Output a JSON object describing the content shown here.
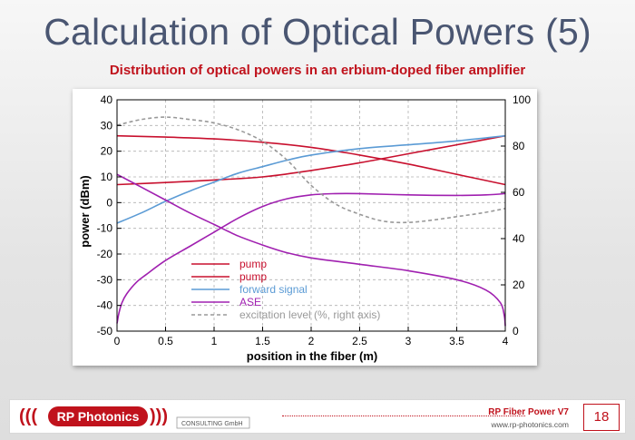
{
  "slide": {
    "title": "Calculation of Optical Powers (5)"
  },
  "footer": {
    "logo_text": "RP Photonics",
    "logo_subtext": "CONSULTING GmbH",
    "product": "RP Fiber Power V7",
    "url": "www.rp-photonics.com",
    "page_number": "18"
  },
  "chart_data": {
    "type": "line",
    "title": "Distribution of optical powers in an erbium-doped fiber amplifier",
    "xlabel": "position in the fiber (m)",
    "ylabel": "power (dBm)",
    "y2label": "",
    "xlim": [
      0,
      4
    ],
    "ylim": [
      -50,
      40
    ],
    "y2lim": [
      0,
      100
    ],
    "xticks": [
      "0",
      "0.5",
      "1",
      "1.5",
      "2",
      "2.5",
      "3",
      "3.5",
      "4"
    ],
    "yticks": [
      "-50",
      "-40",
      "-30",
      "-20",
      "-10",
      "0",
      "10",
      "20",
      "30",
      "40"
    ],
    "y2ticks": [
      "0",
      "20",
      "40",
      "60",
      "80",
      "100"
    ],
    "grid": true,
    "legend": "lower-left",
    "series": [
      {
        "name": "pump",
        "axis": "left",
        "color": "#c8102e",
        "dash": "",
        "x": [
          0,
          0.5,
          1,
          1.5,
          2,
          2.5,
          3,
          3.5,
          4
        ],
        "y": [
          26,
          25.5,
          24.8,
          23.5,
          21.5,
          18.5,
          15,
          11,
          7
        ]
      },
      {
        "name": "pump",
        "axis": "left",
        "color": "#c8102e",
        "dash": "",
        "x": [
          0,
          0.5,
          1,
          1.5,
          2,
          2.5,
          3,
          3.5,
          4
        ],
        "y": [
          7,
          7.8,
          8.8,
          10,
          12.5,
          15.5,
          19,
          22.5,
          26
        ]
      },
      {
        "name": "forward signal",
        "axis": "left",
        "color": "#5b9bd5",
        "dash": "",
        "x": [
          0,
          0.25,
          0.5,
          0.75,
          1,
          1.25,
          1.5,
          1.75,
          2,
          2.5,
          3,
          3.5,
          4
        ],
        "y": [
          -8,
          -4,
          0.5,
          4.5,
          8,
          11.5,
          14,
          16.5,
          18.5,
          21,
          22.5,
          24,
          26
        ]
      },
      {
        "name": "ASE",
        "axis": "left",
        "color": "#a020b0",
        "dash": "",
        "x": [
          0,
          0.02,
          0.05,
          0.1,
          0.2,
          0.3,
          0.5,
          0.75,
          1,
          1.25,
          1.5,
          1.75,
          2,
          2.25,
          2.5,
          3,
          3.5,
          3.8,
          4
        ],
        "y": [
          -47,
          -43,
          -39,
          -35.5,
          -31,
          -28,
          -22.5,
          -17,
          -11.5,
          -6,
          -1.5,
          1.5,
          3,
          3.5,
          3.5,
          3,
          2.8,
          3,
          3.5
        ]
      },
      {
        "name": "ASE",
        "axis": "left",
        "color": "#a020b0",
        "dash": "",
        "x": [
          0,
          0.25,
          0.5,
          0.75,
          1,
          1.25,
          1.5,
          1.75,
          2,
          2.5,
          3,
          3.5,
          3.8,
          3.95,
          3.99,
          4
        ],
        "y": [
          11,
          6,
          1,
          -4,
          -8.5,
          -13,
          -16.5,
          -19.5,
          -21.5,
          -24,
          -26.5,
          -30,
          -34,
          -39,
          -44,
          -48
        ]
      },
      {
        "name": "excitation level (%, right axis)",
        "axis": "right",
        "color": "#999999",
        "dash": "4,3",
        "x": [
          0,
          0.25,
          0.5,
          0.75,
          1,
          1.25,
          1.5,
          1.75,
          2,
          2.25,
          2.5,
          2.75,
          3,
          3.25,
          3.5,
          3.75,
          4
        ],
        "y": [
          89,
          91.5,
          92.5,
          91.5,
          90,
          87,
          82,
          74,
          63,
          55,
          50.5,
          47.5,
          47,
          48,
          49.5,
          51,
          53
        ]
      }
    ],
    "legend_entries": [
      {
        "label": "pump",
        "color": "#c8102e",
        "dash": ""
      },
      {
        "label": "pump",
        "color": "#c8102e",
        "dash": ""
      },
      {
        "label": "forward signal",
        "color": "#5b9bd5",
        "dash": ""
      },
      {
        "label": "ASE",
        "color": "#a020b0",
        "dash": ""
      },
      {
        "label": "excitation level (%, right axis)",
        "color": "#999999",
        "dash": "4,3"
      }
    ]
  }
}
